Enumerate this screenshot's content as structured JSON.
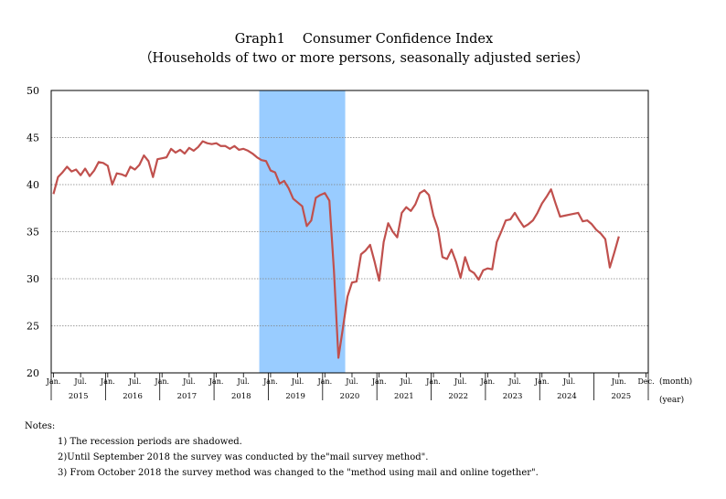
{
  "title": "Graph1　 Consumer Confidence Index",
  "subtitle": "（Households of two or more persons, seasonally adjusted series）",
  "notes": {
    "heading": "Notes:",
    "lines": [
      "1) The recession periods are shadowed.",
      "2)Until September 2018 the survey was conducted by the\"mail survey method\".",
      "3) From October 2018 the survey method was changed to the \"method using mail and online together\"."
    ]
  },
  "chart_data": {
    "type": "line",
    "title": "Graph1　 Consumer Confidence Index",
    "subtitle": "（Households of two or more persons, seasonally adjusted series）",
    "ylim": [
      20,
      50
    ],
    "yticks": [
      20,
      25,
      30,
      35,
      40,
      45,
      50
    ],
    "grid": true,
    "x_unit_month": "(month)",
    "x_unit_year": "(year)",
    "month_ticks": [
      "Jan.",
      "Jul.",
      "Jan.",
      "Jul.",
      "Jan.",
      "Jul.",
      "Jan.",
      "Jul.",
      "Jan.",
      "Jul.",
      "Jan.",
      "Jul.",
      "Jan.",
      "Jul.",
      "Jan.",
      "Jul.",
      "Jan.",
      "Jul.",
      "Jan.",
      "Jul.",
      "Jun.",
      "Dec."
    ],
    "years": [
      "2015",
      "2016",
      "2017",
      "2018",
      "2019",
      "2020",
      "2021",
      "2022",
      "2023",
      "2024",
      "2025"
    ],
    "start": "2015-01",
    "recession": {
      "from": "2018-11",
      "to": "2020-05"
    },
    "series_color": "#c0504d",
    "shade_color": "#99ccff",
    "values": [
      39.0,
      40.8,
      41.3,
      41.9,
      41.4,
      41.6,
      41.0,
      41.7,
      40.9,
      41.5,
      42.4,
      42.3,
      42.0,
      40.0,
      41.2,
      41.1,
      40.9,
      41.9,
      41.6,
      42.1,
      43.1,
      42.5,
      40.8,
      42.7,
      42.8,
      42.9,
      43.8,
      43.4,
      43.7,
      43.3,
      43.9,
      43.6,
      44.0,
      44.6,
      44.4,
      44.3,
      44.4,
      44.1,
      44.1,
      43.8,
      44.1,
      43.7,
      43.8,
      43.6,
      43.3,
      42.9,
      42.6,
      42.5,
      41.5,
      41.3,
      40.1,
      40.4,
      39.6,
      38.5,
      38.1,
      37.7,
      35.6,
      36.2,
      38.6,
      38.9,
      39.1,
      38.3,
      30.9,
      21.6,
      24.8,
      28.1,
      29.6,
      29.7,
      32.6,
      33.0,
      33.6,
      31.8,
      29.8,
      33.9,
      35.9,
      35.0,
      34.4,
      37.0,
      37.6,
      37.2,
      37.9,
      39.1,
      39.4,
      38.9,
      36.7,
      35.3,
      32.3,
      32.1,
      33.1,
      31.8,
      30.1,
      32.3,
      30.9,
      30.6,
      29.9,
      30.9,
      31.1,
      31.0,
      33.9,
      35.0,
      36.2,
      36.3,
      37.0,
      36.2,
      35.5,
      35.8,
      36.2,
      37.0,
      38.0,
      38.7,
      39.5,
      38.0,
      36.6,
      36.7,
      36.8,
      36.9,
      37.0,
      36.1,
      36.2,
      35.8,
      35.2,
      34.8,
      34.2,
      31.2,
      32.8,
      34.5
    ]
  }
}
